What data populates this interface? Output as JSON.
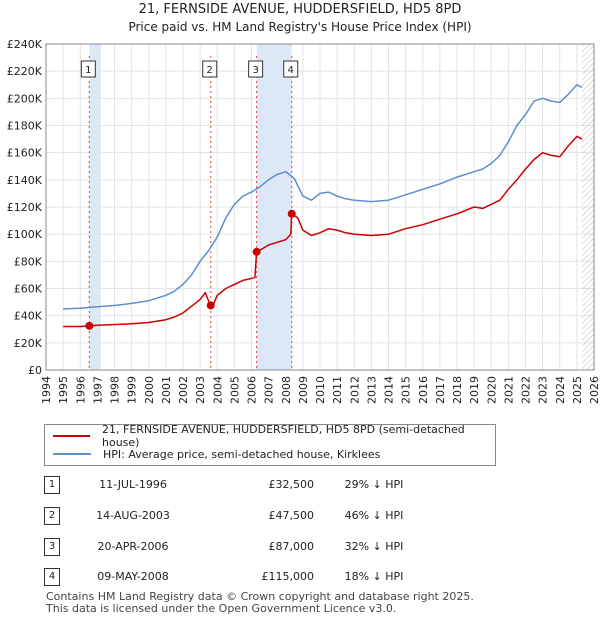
{
  "title_line1": "21, FERNSIDE AVENUE, HUDDERSFIELD, HD5 8PD",
  "title_line2": "Price paid vs. HM Land Registry's House Price Index (HPI)",
  "chart_data": {
    "type": "line",
    "xlim": [
      1994,
      2026
    ],
    "ylim": [
      0,
      240000
    ],
    "y_ticks": [
      0,
      20000,
      40000,
      60000,
      80000,
      100000,
      120000,
      140000,
      160000,
      180000,
      200000,
      220000,
      240000
    ],
    "y_tick_labels": [
      "£0",
      "£20K",
      "£40K",
      "£60K",
      "£80K",
      "£100K",
      "£120K",
      "£140K",
      "£160K",
      "£180K",
      "£200K",
      "£220K",
      "£240K"
    ],
    "x_ticks": [
      1994,
      1995,
      1996,
      1997,
      1998,
      1999,
      2000,
      2001,
      2002,
      2003,
      2004,
      2005,
      2006,
      2007,
      2008,
      2009,
      2010,
      2011,
      2012,
      2013,
      2014,
      2015,
      2016,
      2017,
      2018,
      2019,
      2020,
      2021,
      2022,
      2023,
      2024,
      2025,
      2026
    ],
    "series": [
      {
        "name": "21, FERNSIDE AVENUE, HUDDERSFIELD, HD5 8PD (semi-detached house)",
        "color": "#cc0000",
        "points": [
          [
            1995.0,
            32000
          ],
          [
            1996.0,
            32000
          ],
          [
            1996.53,
            32500
          ],
          [
            1997.0,
            33000
          ],
          [
            1998.0,
            33500
          ],
          [
            1999.0,
            34000
          ],
          [
            2000.0,
            35000
          ],
          [
            2000.5,
            36000
          ],
          [
            2001.0,
            37000
          ],
          [
            2001.5,
            39000
          ],
          [
            2002.0,
            42000
          ],
          [
            2002.5,
            47000
          ],
          [
            2003.0,
            52000
          ],
          [
            2003.3,
            57000
          ],
          [
            2003.6,
            47500
          ],
          [
            2003.8,
            49000
          ],
          [
            2004.0,
            55000
          ],
          [
            2004.5,
            60000
          ],
          [
            2005.0,
            63000
          ],
          [
            2005.5,
            66000
          ],
          [
            2006.2,
            68000
          ],
          [
            2006.3,
            87000
          ],
          [
            2006.6,
            89000
          ],
          [
            2007.0,
            92000
          ],
          [
            2007.5,
            94000
          ],
          [
            2008.0,
            96000
          ],
          [
            2008.3,
            100000
          ],
          [
            2008.35,
            115000
          ],
          [
            2008.7,
            112000
          ],
          [
            2009.0,
            103000
          ],
          [
            2009.5,
            99000
          ],
          [
            2010.0,
            101000
          ],
          [
            2010.5,
            104000
          ],
          [
            2011.0,
            103000
          ],
          [
            2011.5,
            101000
          ],
          [
            2012.0,
            100000
          ],
          [
            2013.0,
            99000
          ],
          [
            2014.0,
            100000
          ],
          [
            2015.0,
            104000
          ],
          [
            2016.0,
            107000
          ],
          [
            2017.0,
            111000
          ],
          [
            2018.0,
            115000
          ],
          [
            2019.0,
            120000
          ],
          [
            2019.5,
            119000
          ],
          [
            2020.0,
            122000
          ],
          [
            2020.5,
            125000
          ],
          [
            2021.0,
            133000
          ],
          [
            2021.5,
            140000
          ],
          [
            2022.0,
            148000
          ],
          [
            2022.5,
            155000
          ],
          [
            2023.0,
            160000
          ],
          [
            2023.5,
            158000
          ],
          [
            2024.0,
            157000
          ],
          [
            2024.5,
            165000
          ],
          [
            2025.0,
            172000
          ],
          [
            2025.3,
            170000
          ]
        ]
      },
      {
        "name": "HPI: Average price, semi-detached house, Kirklees",
        "color": "#5b8fd0",
        "points": [
          [
            1995.0,
            45000
          ],
          [
            1996.0,
            45500
          ],
          [
            1997.0,
            46500
          ],
          [
            1998.0,
            47500
          ],
          [
            1999.0,
            49000
          ],
          [
            2000.0,
            51000
          ],
          [
            2001.0,
            55000
          ],
          [
            2001.5,
            58000
          ],
          [
            2002.0,
            63000
          ],
          [
            2002.5,
            70000
          ],
          [
            2003.0,
            80000
          ],
          [
            2003.5,
            88000
          ],
          [
            2004.0,
            98000
          ],
          [
            2004.5,
            112000
          ],
          [
            2005.0,
            122000
          ],
          [
            2005.5,
            128000
          ],
          [
            2006.0,
            131000
          ],
          [
            2006.5,
            135000
          ],
          [
            2007.0,
            140000
          ],
          [
            2007.5,
            144000
          ],
          [
            2008.0,
            146000
          ],
          [
            2008.5,
            141000
          ],
          [
            2009.0,
            128000
          ],
          [
            2009.5,
            125000
          ],
          [
            2010.0,
            130000
          ],
          [
            2010.5,
            131000
          ],
          [
            2011.0,
            128000
          ],
          [
            2011.5,
            126000
          ],
          [
            2012.0,
            125000
          ],
          [
            2013.0,
            124000
          ],
          [
            2014.0,
            125000
          ],
          [
            2015.0,
            129000
          ],
          [
            2016.0,
            133000
          ],
          [
            2017.0,
            137000
          ],
          [
            2018.0,
            142000
          ],
          [
            2019.0,
            146000
          ],
          [
            2019.5,
            148000
          ],
          [
            2020.0,
            152000
          ],
          [
            2020.5,
            158000
          ],
          [
            2021.0,
            168000
          ],
          [
            2021.5,
            180000
          ],
          [
            2022.0,
            188000
          ],
          [
            2022.5,
            198000
          ],
          [
            2023.0,
            200000
          ],
          [
            2023.5,
            198000
          ],
          [
            2024.0,
            197000
          ],
          [
            2024.5,
            203000
          ],
          [
            2025.0,
            210000
          ],
          [
            2025.3,
            208000
          ]
        ]
      }
    ],
    "sales": [
      {
        "n": "1",
        "x": 1996.53,
        "y": 32500
      },
      {
        "n": "2",
        "x": 2003.62,
        "y": 47500
      },
      {
        "n": "3",
        "x": 2006.3,
        "y": 87000
      },
      {
        "n": "4",
        "x": 2008.35,
        "y": 115000
      }
    ],
    "shaded_ranges": [
      [
        1996.53,
        1997.2
      ],
      [
        2006.3,
        2008.35
      ]
    ],
    "future_hatch_from": 2025.3
  },
  "legend": {
    "property_label": "21, FERNSIDE AVENUE, HUDDERSFIELD, HD5 8PD (semi-detached house)",
    "hpi_label": "HPI: Average price, semi-detached house, Kirklees",
    "property_color": "#cc0000",
    "hpi_color": "#5b8fd0"
  },
  "transactions": [
    {
      "n": "1",
      "date": "11-JUL-1996",
      "price": "£32,500",
      "delta": "29% ↓ HPI"
    },
    {
      "n": "2",
      "date": "14-AUG-2003",
      "price": "£47,500",
      "delta": "46% ↓ HPI"
    },
    {
      "n": "3",
      "date": "20-APR-2006",
      "price": "£87,000",
      "delta": "32% ↓ HPI"
    },
    {
      "n": "4",
      "date": "09-MAY-2008",
      "price": "£115,000",
      "delta": "18% ↓ HPI"
    }
  ],
  "footer": {
    "line1": "Contains HM Land Registry data © Crown copyright and database right 2025.",
    "line2": "This data is licensed under the Open Government Licence v3.0."
  }
}
